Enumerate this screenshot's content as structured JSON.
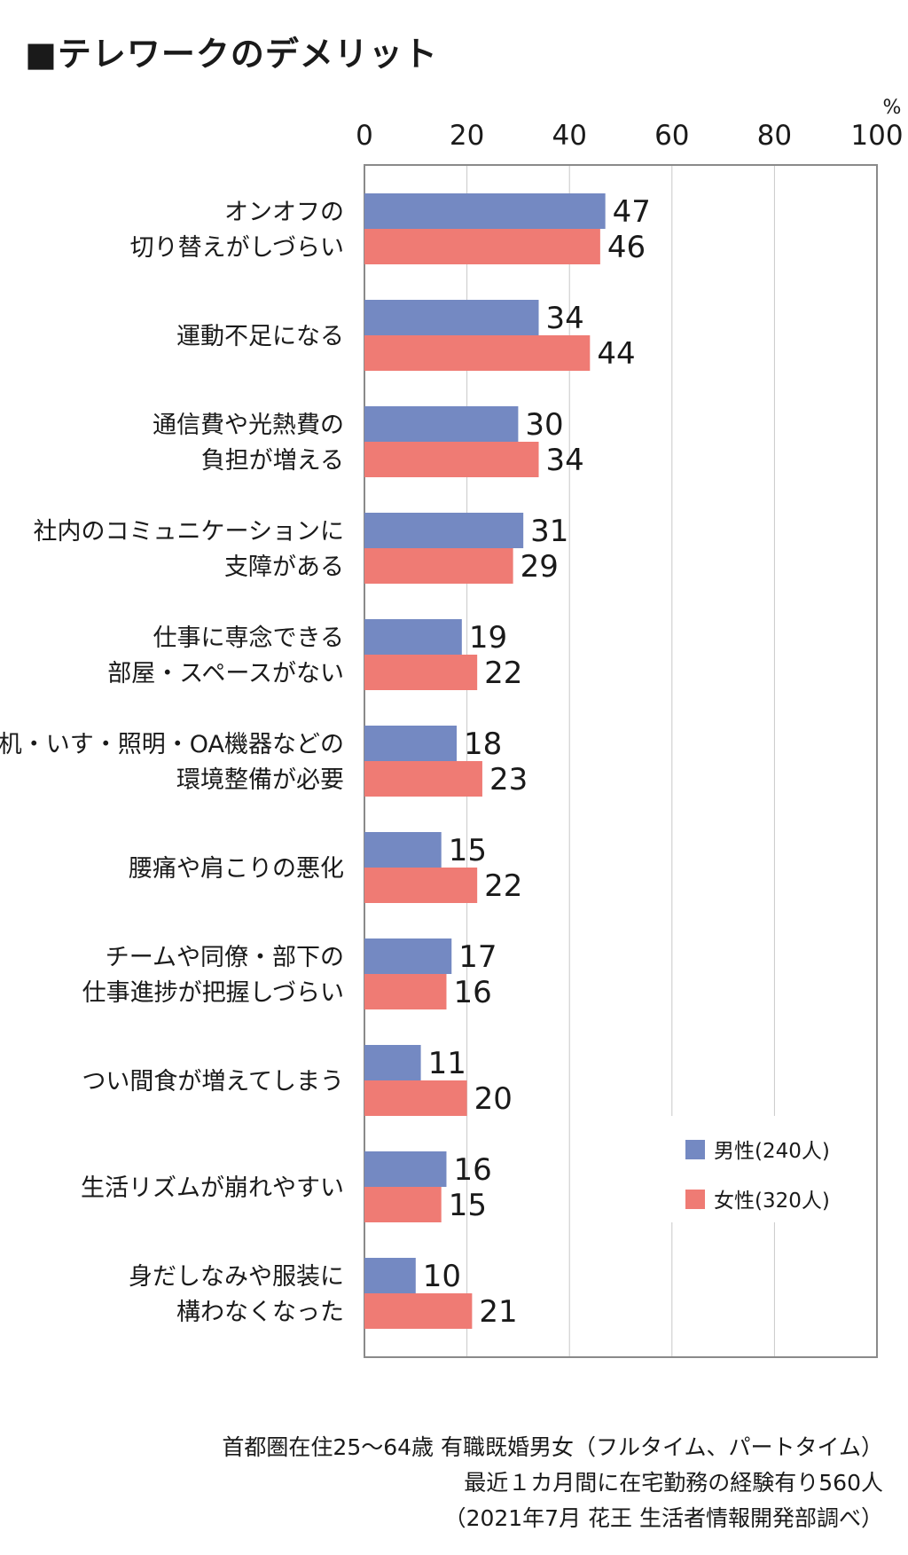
{
  "chart_data": {
    "type": "bar",
    "orientation": "horizontal",
    "title": "■テレワークのデメリット",
    "unit": "%",
    "xlim": [
      0,
      100
    ],
    "x_ticks": [
      "0",
      "20",
      "40",
      "60",
      "80",
      "100"
    ],
    "grid": true,
    "legend_position": "bottom-right",
    "categories": [
      [
        "オンオフの",
        "切り替えがしづらい"
      ],
      [
        "運動不足になる"
      ],
      [
        "通信費や光熱費の",
        "負担が増える"
      ],
      [
        "社内のコミュニケーションに",
        "支障がある"
      ],
      [
        "仕事に専念できる",
        "部屋・スペースがない"
      ],
      [
        "机・いす・照明・OA機器などの",
        "環境整備が必要"
      ],
      [
        "腰痛や肩こりの悪化"
      ],
      [
        "チームや同僚・部下の",
        "仕事進捗が把握しづらい"
      ],
      [
        "つい間食が増えてしまう"
      ],
      [
        "生活リズムが崩れやすい"
      ],
      [
        "身だしなみや服装に",
        "構わなくなった"
      ]
    ],
    "series": [
      {
        "name": "男性(240人)",
        "color": "#7489c2",
        "values": [
          47,
          34,
          30,
          31,
          19,
          18,
          15,
          17,
          11,
          16,
          10
        ]
      },
      {
        "name": "女性(320人)",
        "color": "#ef7b74",
        "values": [
          46,
          44,
          34,
          29,
          22,
          23,
          22,
          16,
          20,
          15,
          21
        ]
      }
    ]
  },
  "notes": [
    "首都圏在住25～64歳 有職既婚男女（フルタイム、パートタイム）",
    "最近１カ月間に在宅勤務の経験有り560人",
    "（2021年7月 花王 生活者情報開発部調べ）"
  ]
}
